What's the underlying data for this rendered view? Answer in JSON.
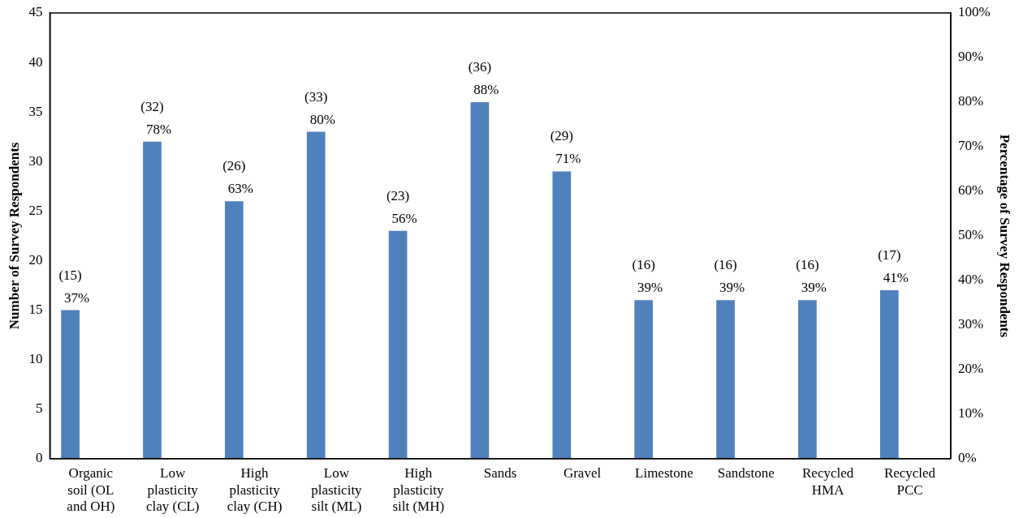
{
  "chart_data": {
    "type": "bar",
    "categories": [
      "Organic\nsoil (OL\nand OH)",
      "Low\nplasticity\nclay (CL)",
      "High\nplasticity\nclay (CH)",
      "Low\nplasticity\nsilt (ML)",
      "High\nplasticity\nsilt (MH)",
      "Sands",
      "Gravel",
      "Limestone",
      "Sandstone",
      "Recycled\nHMA",
      "Recycled\nPCC"
    ],
    "values": [
      15,
      32,
      26,
      33,
      23,
      36,
      29,
      16,
      16,
      16,
      17
    ],
    "value_labels": [
      "(15)\n37%",
      "(32)\n78%",
      "(26)\n63%",
      "(33)\n80%",
      "(23)\n56%",
      "(36)\n88%",
      "(29)\n71%",
      "(16)\n39%",
      "(16)\n39%",
      "(16)\n39%",
      "(17)\n41%"
    ],
    "color": "#4f81bd",
    "ylabel": "Number of Survey Respondents",
    "y2label": "Percentage of Survey Respondents",
    "ylim": [
      0,
      45
    ],
    "yticks": [
      0,
      5,
      10,
      15,
      20,
      25,
      30,
      35,
      40,
      45
    ],
    "y2lim": [
      0,
      100
    ],
    "y2ticks": [
      {
        "value": 0,
        "label": "0%"
      },
      {
        "value": 10,
        "label": "10%"
      },
      {
        "value": 20,
        "label": "20%"
      },
      {
        "value": 30,
        "label": "30%"
      },
      {
        "value": 40,
        "label": "40%"
      },
      {
        "value": 50,
        "label": "50%"
      },
      {
        "value": 60,
        "label": "60%"
      },
      {
        "value": 70,
        "label": "70%"
      },
      {
        "value": 80,
        "label": "80%"
      },
      {
        "value": 90,
        "label": "90%"
      },
      {
        "value": 100,
        "label": "100%"
      }
    ],
    "grid": false,
    "legend": false
  }
}
